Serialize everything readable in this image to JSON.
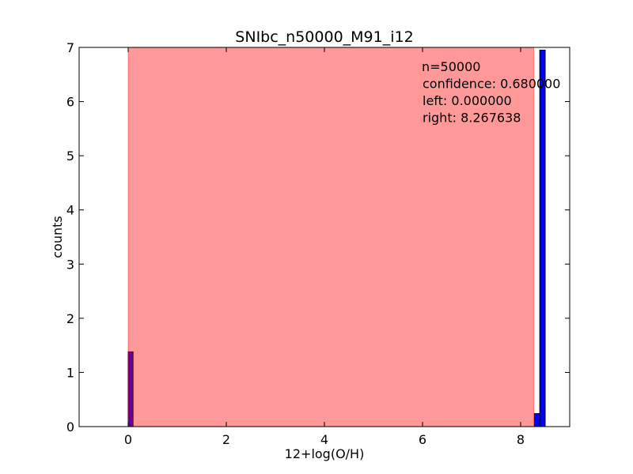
{
  "chart_data": {
    "type": "bar",
    "title": "SNIbc_n50000_M91_i12",
    "xlabel": "12+log(O/H)",
    "ylabel": "counts",
    "xlim": [
      -1,
      9
    ],
    "ylim": [
      0,
      7
    ],
    "xticks": [
      0,
      2,
      4,
      6,
      8
    ],
    "yticks": [
      0,
      1,
      2,
      3,
      4,
      5,
      6,
      7
    ],
    "grid": false,
    "bars": [
      {
        "x0": 0.0,
        "x1": 0.1,
        "value": 1.38
      },
      {
        "x0": 8.28,
        "x1": 8.39,
        "value": 0.24
      },
      {
        "x0": 8.39,
        "x1": 8.5,
        "value": 6.95
      }
    ],
    "bar_color": "#0000ff",
    "shaded_region": {
      "from": 0.0,
      "to": 8.267638,
      "color": "#ff0000",
      "opacity": 0.4
    },
    "annotation": [
      "n=50000",
      "confidence: 0.680000",
      "left: 0.000000",
      "right: 8.267638"
    ]
  }
}
